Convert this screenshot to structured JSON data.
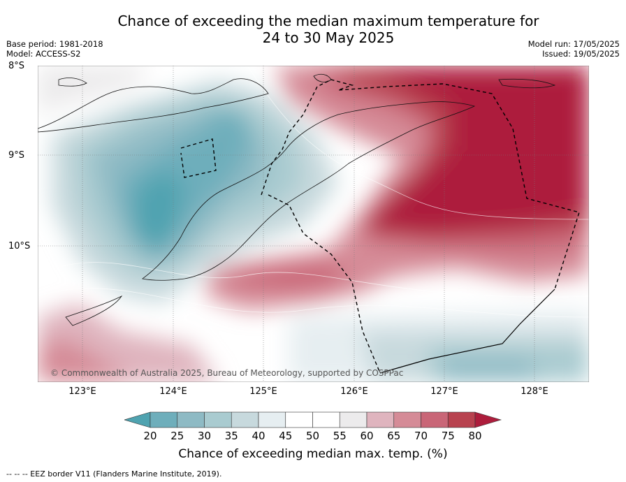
{
  "title_line1": "Chance of exceeding the median maximum temperature for",
  "title_line2": "24 to 30 May 2025",
  "base_period": "Base period: 1981-2018",
  "model": "Model: ACCESS-S2",
  "model_run": "Model run: 17/05/2025",
  "issued": "Issued: 19/05/2025",
  "lat_labels": [
    "8°S",
    "9°S",
    "10°S"
  ],
  "lon_labels": [
    "123°E",
    "124°E",
    "125°E",
    "126°E",
    "127°E",
    "128°E"
  ],
  "copyright": "© Commonwealth of Australia 2025, Bureau of Meteorology, supported by COSPPac",
  "colorbar": {
    "ticks": [
      "20",
      "25",
      "30",
      "35",
      "40",
      "45",
      "50",
      "55",
      "60",
      "65",
      "70",
      "75",
      "80"
    ],
    "colors": [
      "#4fa3b0",
      "#6eaebb",
      "#8ebac4",
      "#a9cbd0",
      "#c7d9dd",
      "#e6eef1",
      "#ffffff",
      "#ffffff",
      "#ecebec",
      "#dfb4be",
      "#d58b97",
      "#c96677",
      "#b8424f",
      "#ad1d3c"
    ],
    "label": "Chance of exceeding median max. temp. (%)"
  },
  "footnote": "--  --  -- EEZ border V11 (Flanders Marine Institute, 2019)."
}
